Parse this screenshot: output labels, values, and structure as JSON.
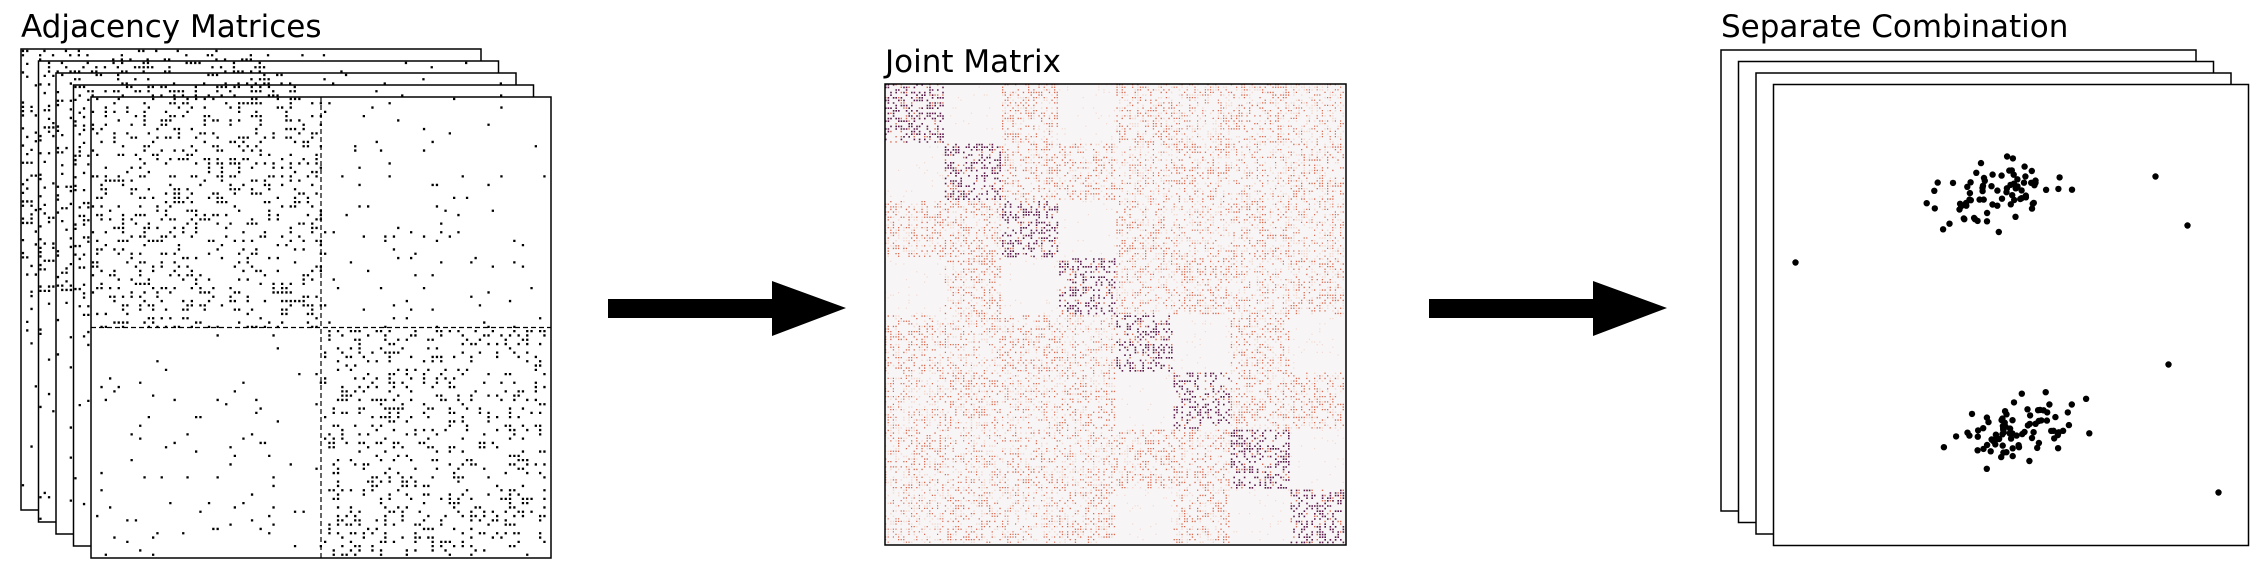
{
  "panels": {
    "adjacency": {
      "title": "Adjacency Matrices",
      "sheet_count": 5
    },
    "joint": {
      "title": "Joint Matrix",
      "block_grid": 8
    },
    "separate": {
      "title": "Separate Combination",
      "sheet_count": 4
    }
  },
  "arrows": [
    {
      "name": "arrow-adjacency-to-joint",
      "direction": "right"
    },
    {
      "name": "arrow-joint-to-separate",
      "direction": "right"
    }
  ],
  "colors": {
    "background": "#ffffff",
    "ink": "#000000",
    "joint_low": "#f4d9d0",
    "joint_mid": "#d9694f",
    "joint_high": "#5a1a4a",
    "joint_blank": "#f7f5f5"
  }
}
